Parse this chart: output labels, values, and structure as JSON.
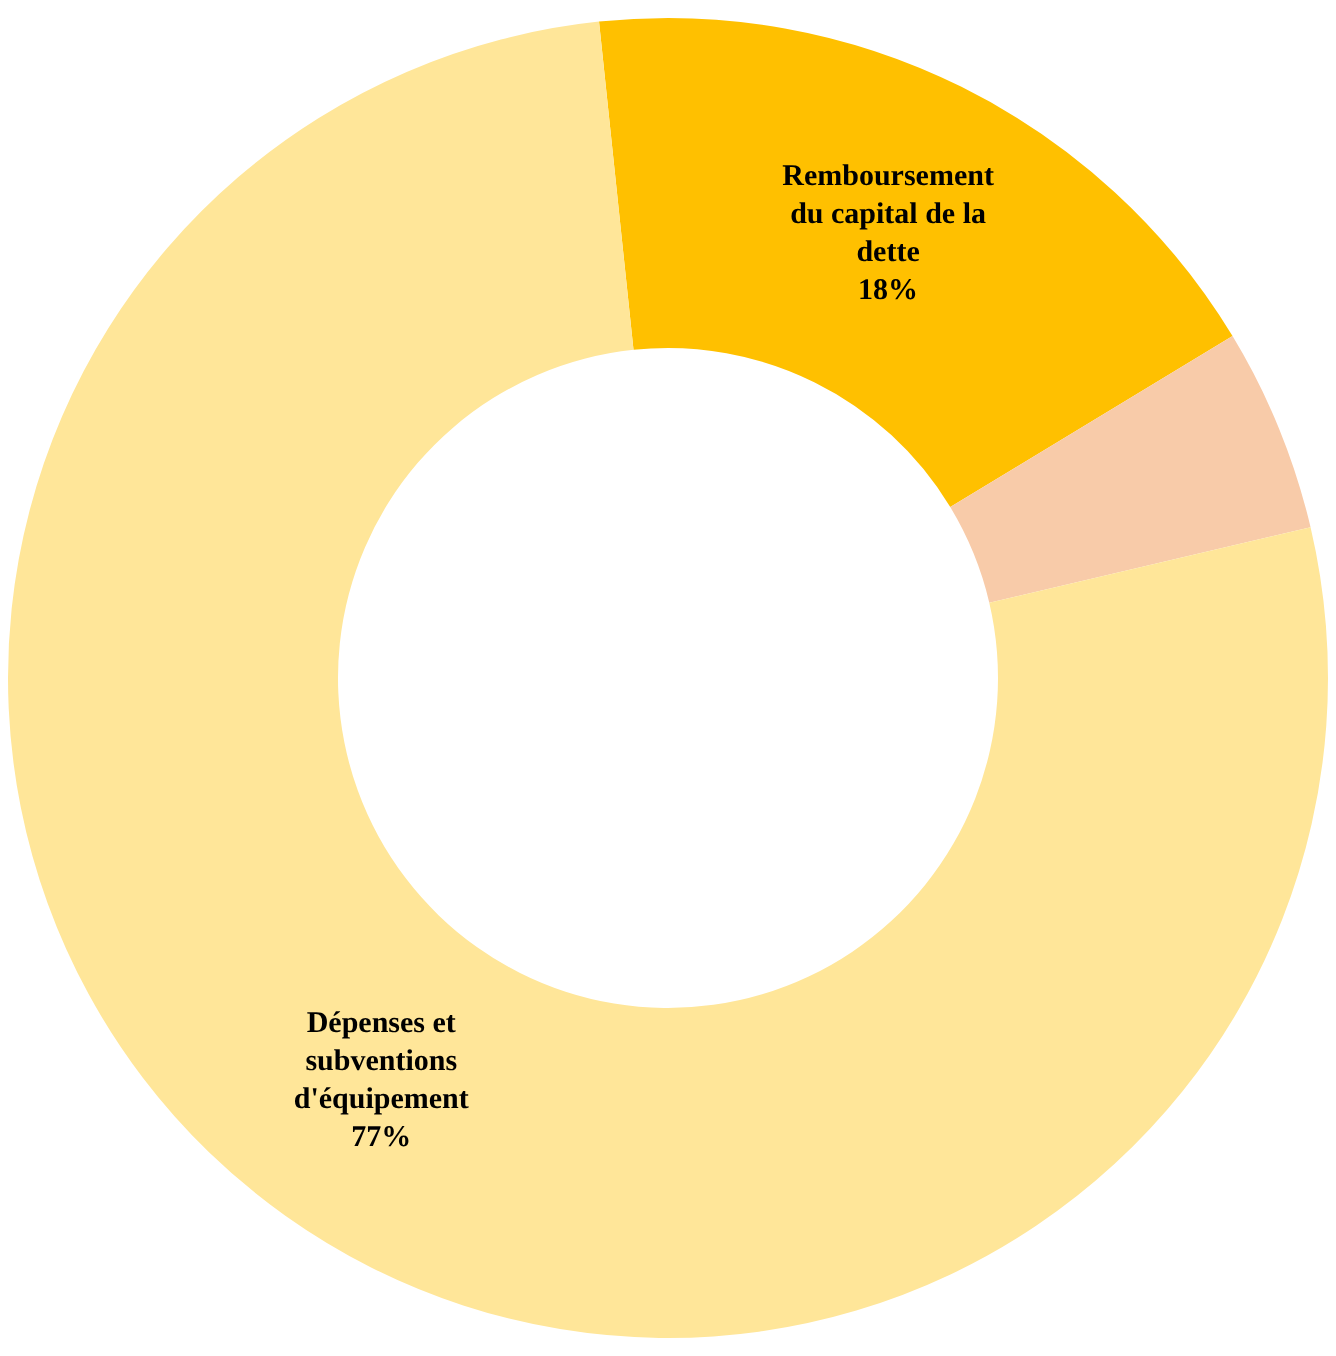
{
  "chart_data": {
    "type": "donut",
    "categories": [
      "Remboursement du capital de la dette",
      null,
      "Dépenses et subventions d'équipement"
    ],
    "values": [
      18,
      5,
      77
    ],
    "colors": [
      "#ffc000",
      "#f8cba9",
      "#ffe699"
    ],
    "value_labels": [
      "18%",
      null,
      "77%"
    ],
    "legend": false
  }
}
